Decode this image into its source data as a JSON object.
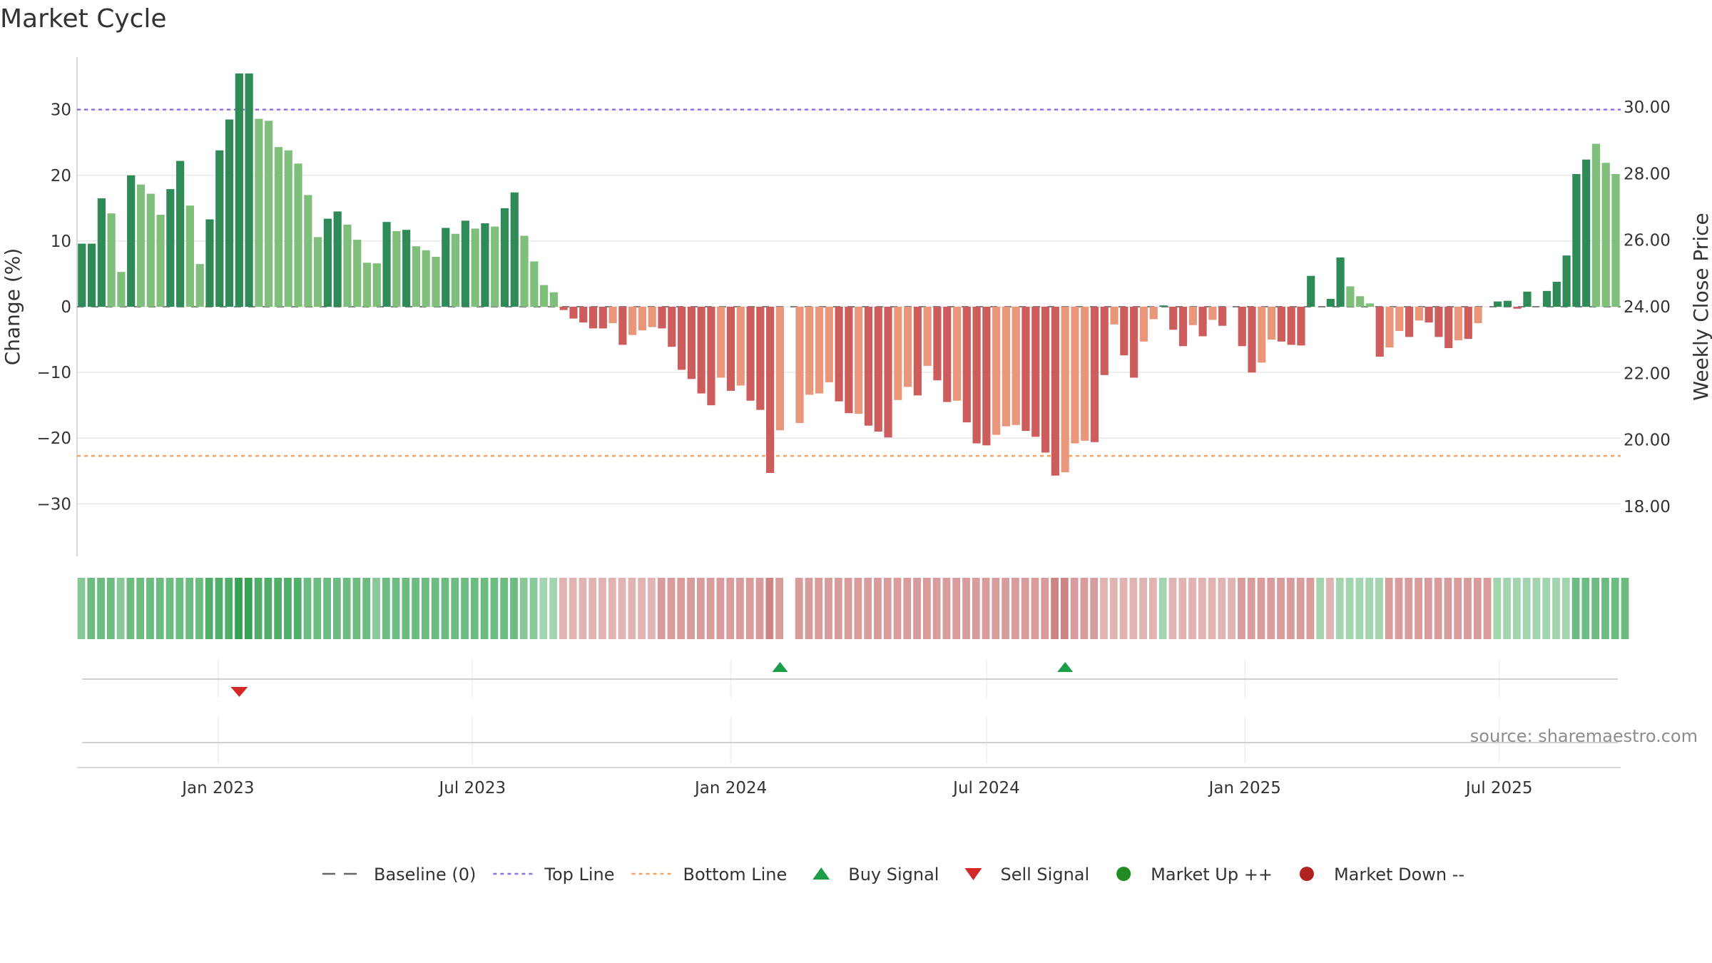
{
  "title": "Market Cycle",
  "source": "source: sharemaestro.com",
  "colors": {
    "up_dark": "#2e8b57",
    "up_light": "#7fbf7b",
    "down_dark": "#cd5c5c",
    "down_light": "#e9967a",
    "top_line": "#9370db",
    "bottom_line": "#f4a460",
    "baseline": "#666666",
    "grid": "#e8e8e8",
    "buy": "#1a9e4a",
    "sell": "#d62728",
    "market_up": "#228b22",
    "market_down": "#b22222"
  },
  "chart_data": {
    "type": "bar",
    "x_start": "2022-09-26",
    "x_step_days": 7,
    "y_left_label": "Change (%)",
    "y_right_label": "Weekly Close Price",
    "y_left_ticks": [
      "30",
      "20",
      "10",
      "0",
      "−10",
      "−20",
      "−30"
    ],
    "y_left_tick_values": [
      30,
      20,
      10,
      0,
      -10,
      -20,
      -30
    ],
    "y_right_ticks": [
      "30.00",
      "28.00",
      "26.00",
      "24.00",
      "22.00",
      "20.00",
      "18.00"
    ],
    "y_right_tick_values": [
      30,
      28,
      26,
      24,
      22,
      20,
      18
    ],
    "ylim": [
      -38,
      38
    ],
    "y2lim": [
      16.5,
      31.5
    ],
    "top_line": 30,
    "bottom_line": -22.7,
    "x_ticks": [
      {
        "label": "Jan 2023",
        "date": "2023-01-01"
      },
      {
        "label": "Jul 2023",
        "date": "2023-07-01"
      },
      {
        "label": "Jan 2024",
        "date": "2024-01-01"
      },
      {
        "label": "Jul 2024",
        "date": "2024-07-01"
      },
      {
        "label": "Jan 2025",
        "date": "2025-01-01"
      },
      {
        "label": "Jul 2025",
        "date": "2025-07-01"
      }
    ],
    "values": [
      9.6,
      9.6,
      16.5,
      14.2,
      5.3,
      20,
      18.6,
      17.2,
      14,
      17.9,
      22.2,
      15.4,
      6.5,
      13.3,
      23.8,
      28.5,
      35.5,
      35.5,
      28.6,
      28.3,
      24.3,
      23.8,
      21.8,
      17,
      10.6,
      13.4,
      14.5,
      12.5,
      10.2,
      6.7,
      6.6,
      12.9,
      11.5,
      11.7,
      9.2,
      8.6,
      7.6,
      12,
      11.1,
      13.1,
      11.9,
      12.7,
      12.2,
      15,
      17.4,
      10.8,
      6.9,
      3.3,
      2.2,
      -0.5,
      -1.8,
      -2.4,
      -3.3,
      -3.3,
      -2.5,
      -5.8,
      -4.3,
      -3.6,
      -3.1,
      -3.3,
      -6.1,
      -9.6,
      -11,
      -13.2,
      -15,
      -10.8,
      -12.8,
      -12,
      -14.3,
      -15.7,
      -25.3,
      -18.8,
      0,
      -17.7,
      -13.4,
      -13.2,
      -11.5,
      -14.4,
      -16.2,
      -16.3,
      -18.1,
      -19,
      -19.9,
      -14.2,
      -12.2,
      -13.5,
      -9,
      -11.2,
      -14.5,
      -14.3,
      -17.6,
      -20.8,
      -21.1,
      -19.5,
      -18.2,
      -18,
      -18.9,
      -19.8,
      -22.2,
      -25.7,
      -25.2,
      -20.8,
      -20.4,
      -20.6,
      -10.4,
      -2.7,
      -7.4,
      -10.8,
      -5.3,
      -1.9,
      0.2,
      -3.5,
      -6,
      -2.8,
      -4.5,
      -2,
      -2.9,
      0,
      -6,
      -10,
      -8.5,
      -5,
      -5.3,
      -5.8,
      -5.9,
      4.7,
      0,
      1.2,
      7.5,
      3.1,
      1.6,
      0.5,
      -7.6,
      -6.2,
      -3.7,
      -4.6,
      -2.1,
      -2.4,
      -4.6,
      -6.3,
      -5.1,
      -4.9,
      -2.5,
      0,
      0.8,
      0.9,
      -0.3,
      2.3,
      0,
      2.4,
      3.8,
      7.8,
      20.2,
      22.4,
      24.8,
      21.9,
      20.2
    ],
    "shades": [
      2,
      2,
      2,
      1,
      1,
      2,
      1,
      1,
      1,
      2,
      2,
      1,
      1,
      2,
      2,
      2,
      2,
      2,
      1,
      1,
      1,
      1,
      1,
      1,
      1,
      2,
      2,
      1,
      1,
      1,
      1,
      2,
      1,
      2,
      1,
      1,
      1,
      2,
      1,
      2,
      1,
      2,
      1,
      2,
      2,
      1,
      1,
      1,
      1,
      2,
      2,
      2,
      2,
      2,
      1,
      2,
      1,
      1,
      1,
      2,
      2,
      2,
      2,
      2,
      2,
      1,
      2,
      1,
      2,
      2,
      2,
      1,
      0,
      1,
      1,
      1,
      1,
      2,
      2,
      1,
      2,
      2,
      2,
      1,
      1,
      2,
      1,
      2,
      2,
      1,
      2,
      2,
      2,
      1,
      1,
      1,
      2,
      2,
      2,
      2,
      1,
      1,
      1,
      2,
      2,
      1,
      2,
      2,
      1,
      1,
      2,
      2,
      2,
      1,
      2,
      1,
      2,
      0,
      2,
      2,
      1,
      1,
      2,
      2,
      2,
      2,
      0,
      2,
      2,
      1,
      1,
      1,
      2,
      1,
      1,
      2,
      1,
      2,
      2,
      2,
      1,
      2,
      1,
      0,
      2,
      2,
      2,
      2,
      0,
      2,
      2,
      2,
      2,
      2,
      1,
      1
    ],
    "heat_levels": [
      3,
      4,
      4,
      4,
      3,
      4,
      4,
      4,
      4,
      4,
      4,
      4,
      4,
      5,
      5,
      5,
      6,
      6,
      5,
      5,
      5,
      5,
      5,
      4,
      4,
      4,
      4,
      4,
      4,
      4,
      3,
      4,
      4,
      4,
      4,
      4,
      4,
      4,
      4,
      4,
      4,
      4,
      4,
      4,
      4,
      3,
      3,
      2,
      2,
      -2,
      -2,
      -2,
      -2,
      -2,
      -2,
      -2,
      -2,
      -2,
      -2,
      -3,
      -3,
      -3,
      -3,
      -3,
      -3,
      -3,
      -3,
      -3,
      -3,
      -3,
      -4,
      -3,
      0,
      -3,
      -3,
      -3,
      -3,
      -3,
      -3,
      -3,
      -3,
      -3,
      -3,
      -3,
      -3,
      -3,
      -3,
      -3,
      -3,
      -3,
      -3,
      -3,
      -3,
      -3,
      -3,
      -3,
      -3,
      -3,
      -3,
      -4,
      -4,
      -3,
      -3,
      -3,
      -2,
      -2,
      -2,
      -2,
      -2,
      -2,
      2,
      -2,
      -2,
      -2,
      -2,
      -2,
      -2,
      -2,
      -3,
      -3,
      -3,
      -3,
      -3,
      -3,
      -3,
      -3,
      2,
      -2,
      2,
      2,
      2,
      2,
      2,
      -3,
      -3,
      -3,
      -3,
      -3,
      -3,
      -3,
      -3,
      -3,
      -3,
      -3,
      2,
      2,
      2,
      2,
      2,
      2,
      2,
      2,
      4,
      4,
      4,
      4,
      4,
      4
    ],
    "buy_signals": [
      "2024-02-05",
      "2024-08-26"
    ],
    "sell_signals": [
      "2023-01-16"
    ]
  },
  "legend": [
    {
      "key": "baseline",
      "label": "Baseline (0)"
    },
    {
      "key": "top",
      "label": "Top Line"
    },
    {
      "key": "bottom",
      "label": "Bottom Line"
    },
    {
      "key": "buy",
      "label": "Buy Signal"
    },
    {
      "key": "sell",
      "label": "Sell Signal"
    },
    {
      "key": "up",
      "label": "Market Up ++"
    },
    {
      "key": "down",
      "label": "Market Down --"
    }
  ]
}
